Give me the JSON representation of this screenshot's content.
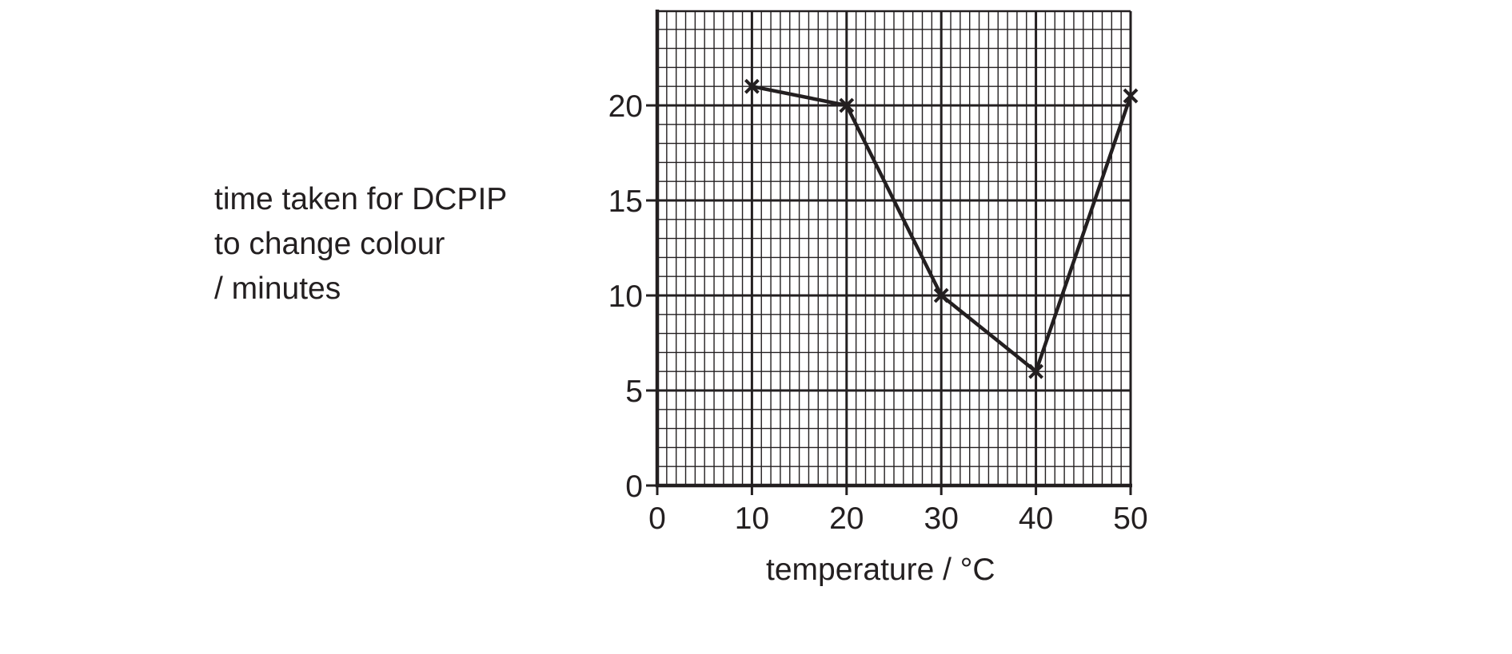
{
  "chart_data": {
    "type": "line",
    "title": "",
    "ylabel_lines": [
      "time taken for DCPIP",
      "to change colour",
      "/ minutes"
    ],
    "xlabel": "temperature / °C",
    "x": [
      10,
      20,
      30,
      40,
      50
    ],
    "series": [
      {
        "values": [
          21,
          20,
          10,
          6,
          20.5
        ]
      }
    ],
    "xlim": [
      0,
      50
    ],
    "ylim": [
      0,
      25
    ],
    "xticks": [
      "0",
      "10",
      "20",
      "30",
      "40",
      "50"
    ],
    "yticks": [
      "0",
      "5",
      "10",
      "15",
      "20"
    ],
    "marker": "cross",
    "grid": true,
    "colors": {
      "ink": "#231f20"
    }
  }
}
